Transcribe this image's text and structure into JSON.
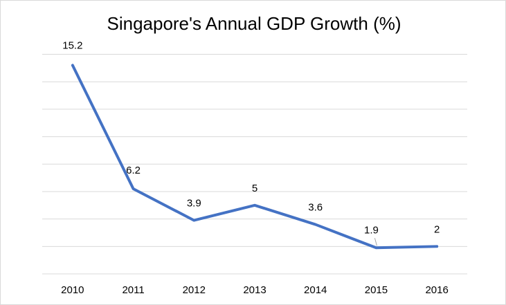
{
  "chart_data": {
    "type": "line",
    "title": "Singapore's Annual GDP Growth (%)",
    "categories": [
      "2010",
      "2011",
      "2012",
      "2013",
      "2014",
      "2015",
      "2016"
    ],
    "series": [
      {
        "values": [
          15.2,
          6.2,
          3.9,
          5,
          3.6,
          1.9,
          2
        ],
        "labels": [
          "15.2",
          "6.2",
          "3.9",
          "5",
          "3.6",
          "1.9",
          "2"
        ]
      }
    ],
    "xlabel": "",
    "ylabel": "",
    "ylim": [
      0,
      16
    ],
    "grid": true,
    "legend": "none",
    "colors": {
      "series": "#4472c4",
      "grid": "#d9d9d9"
    }
  }
}
